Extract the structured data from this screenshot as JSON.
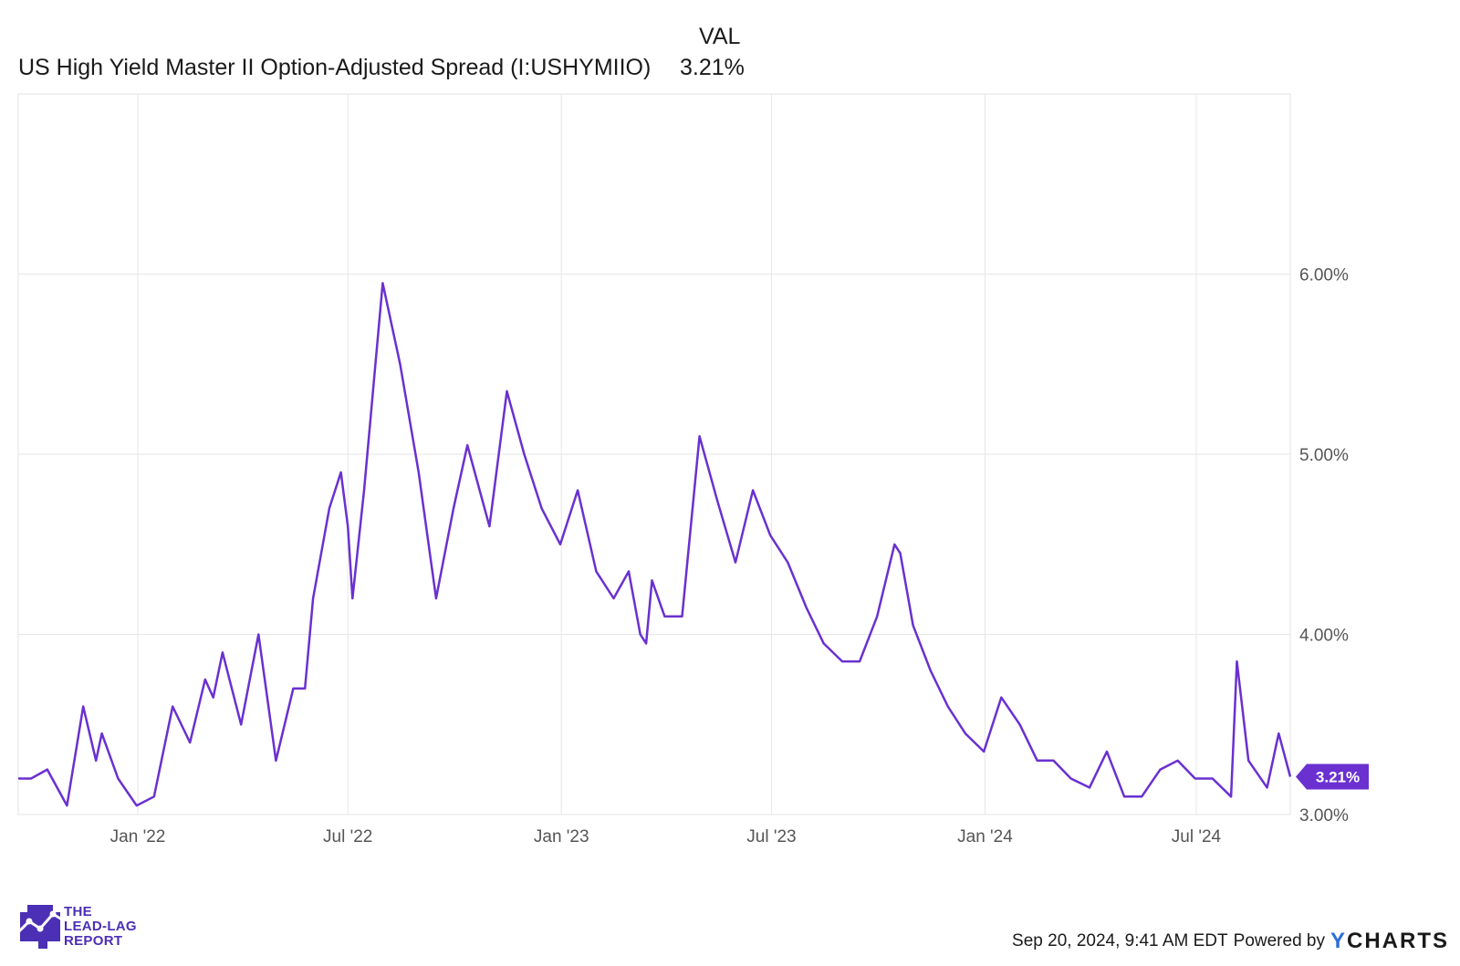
{
  "chart_data": {
    "type": "line",
    "legend_header": "VAL",
    "series": [
      {
        "name": "US High Yield Master II Option-Adjusted Spread (I:USHYMIIO)",
        "current_value_label": "3.21%",
        "color": "#6a30d0",
        "x": [
          "2021-09-20",
          "2021-10-01",
          "2021-10-15",
          "2021-11-01",
          "2021-11-15",
          "2021-11-26",
          "2021-12-01",
          "2021-12-15",
          "2021-12-31",
          "2022-01-15",
          "2022-01-31",
          "2022-02-15",
          "2022-02-28",
          "2022-03-07",
          "2022-03-15",
          "2022-03-31",
          "2022-04-15",
          "2022-04-30",
          "2022-05-15",
          "2022-05-25",
          "2022-06-01",
          "2022-06-15",
          "2022-06-25",
          "2022-07-01",
          "2022-07-05",
          "2022-07-15",
          "2022-07-31",
          "2022-08-15",
          "2022-08-31",
          "2022-09-15",
          "2022-09-30",
          "2022-10-12",
          "2022-10-31",
          "2022-11-15",
          "2022-11-30",
          "2022-12-15",
          "2022-12-31",
          "2023-01-15",
          "2023-01-31",
          "2023-02-15",
          "2023-02-28",
          "2023-03-10",
          "2023-03-15",
          "2023-03-20",
          "2023-03-31",
          "2023-04-15",
          "2023-04-30",
          "2023-05-15",
          "2023-05-31",
          "2023-06-15",
          "2023-06-30",
          "2023-07-15",
          "2023-07-31",
          "2023-08-15",
          "2023-08-31",
          "2023-09-15",
          "2023-09-30",
          "2023-10-15",
          "2023-10-20",
          "2023-10-31",
          "2023-11-15",
          "2023-11-30",
          "2023-12-15",
          "2023-12-31",
          "2024-01-15",
          "2024-01-31",
          "2024-02-15",
          "2024-02-29",
          "2024-03-15",
          "2024-03-31",
          "2024-04-15",
          "2024-04-30",
          "2024-05-15",
          "2024-05-31",
          "2024-06-15",
          "2024-06-30",
          "2024-07-15",
          "2024-07-31",
          "2024-08-05",
          "2024-08-15",
          "2024-08-31",
          "2024-09-10",
          "2024-09-20"
        ],
        "values": [
          3.2,
          3.2,
          3.25,
          3.05,
          3.6,
          3.3,
          3.45,
          3.2,
          3.05,
          3.1,
          3.6,
          3.4,
          3.75,
          3.65,
          3.9,
          3.5,
          4.0,
          3.3,
          3.7,
          3.7,
          4.2,
          4.7,
          4.9,
          4.6,
          4.2,
          4.8,
          5.95,
          5.5,
          4.9,
          4.2,
          4.7,
          5.05,
          4.6,
          5.35,
          5.0,
          4.7,
          4.5,
          4.8,
          4.35,
          4.2,
          4.35,
          4.0,
          3.95,
          4.3,
          4.1,
          4.1,
          5.1,
          4.75,
          4.4,
          4.8,
          4.55,
          4.4,
          4.15,
          3.95,
          3.85,
          3.85,
          4.1,
          4.5,
          4.45,
          4.05,
          3.8,
          3.6,
          3.45,
          3.35,
          3.65,
          3.5,
          3.3,
          3.3,
          3.2,
          3.15,
          3.35,
          3.1,
          3.1,
          3.25,
          3.3,
          3.2,
          3.2,
          3.1,
          3.85,
          3.3,
          3.15,
          3.45,
          3.21
        ]
      }
    ],
    "x_tick_labels": [
      "Jan '22",
      "Jul '22",
      "Jan '23",
      "Jul '23",
      "Jan '24",
      "Jul '24"
    ],
    "x_tick_dates": [
      "2022-01-01",
      "2022-07-01",
      "2023-01-01",
      "2023-07-01",
      "2024-01-01",
      "2024-07-01"
    ],
    "x_range": [
      "2021-09-20",
      "2024-09-20"
    ],
    "y_ticks": [
      3.0,
      4.0,
      5.0,
      6.0
    ],
    "y_tick_labels": [
      "3.00%",
      "4.00%",
      "5.00%",
      "6.00%"
    ],
    "ylim": [
      3.0,
      7.0
    ],
    "y_axis_side": "right",
    "grid": true
  },
  "branding": {
    "logo_lines": [
      "THE",
      "LEAD-LAG",
      "REPORT"
    ],
    "logo_color": "#4b2fb5"
  },
  "footer": {
    "timestamp": "Sep 20, 2024, 9:41 AM EDT",
    "powered_by": "Powered by",
    "brand_y": "Y",
    "brand_rest": "CHARTS"
  }
}
